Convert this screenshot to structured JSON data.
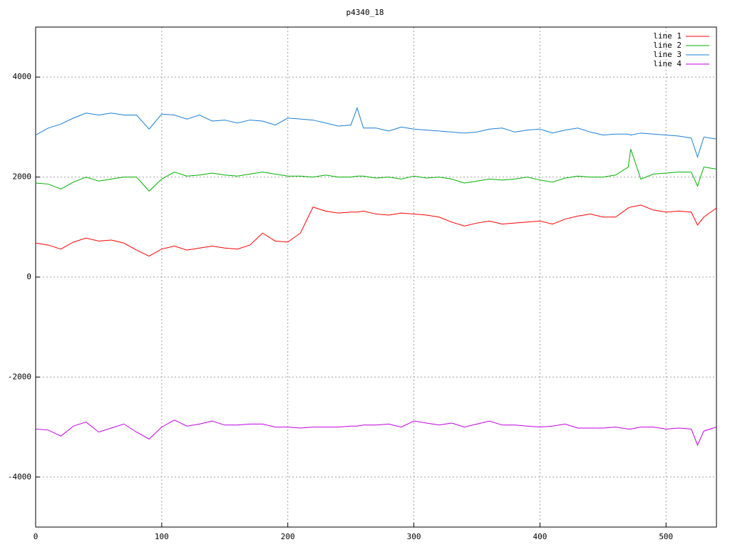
{
  "chart_data": {
    "type": "line",
    "title": "p4340_18",
    "x": [
      0,
      10,
      20,
      30,
      40,
      50,
      60,
      70,
      80,
      90,
      100,
      110,
      120,
      130,
      140,
      150,
      160,
      170,
      180,
      190,
      200,
      210,
      220,
      230,
      240,
      250,
      255,
      260,
      270,
      280,
      290,
      300,
      310,
      320,
      330,
      340,
      350,
      360,
      370,
      380,
      390,
      400,
      410,
      420,
      430,
      440,
      450,
      460,
      470,
      472,
      480,
      490,
      500,
      510,
      520,
      525,
      530,
      540
    ],
    "xlim": [
      0,
      540
    ],
    "xticks": [
      0,
      100,
      200,
      300,
      400,
      500
    ],
    "ylim": [
      -5000,
      5000
    ],
    "yticks": [
      -4000,
      -2000,
      0,
      2000,
      4000
    ],
    "grid": true,
    "legend": "top-right",
    "series": [
      {
        "name": "line 1",
        "color": "#ff0000",
        "values": [
          680,
          640,
          560,
          700,
          780,
          720,
          740,
          680,
          540,
          420,
          560,
          620,
          540,
          580,
          620,
          580,
          560,
          640,
          880,
          720,
          700,
          880,
          1400,
          1320,
          1280,
          1300,
          1300,
          1320,
          1260,
          1240,
          1280,
          1260,
          1240,
          1200,
          1100,
          1020,
          1080,
          1120,
          1060,
          1080,
          1100,
          1120,
          1060,
          1160,
          1220,
          1260,
          1200,
          1200,
          1380,
          1400,
          1440,
          1340,
          1300,
          1320,
          1300,
          1040,
          1200,
          1380
        ]
      },
      {
        "name": "line 2",
        "color": "#00b000",
        "values": [
          1880,
          1860,
          1760,
          1900,
          2000,
          1920,
          1960,
          2000,
          2000,
          1720,
          1960,
          2100,
          2020,
          2040,
          2080,
          2040,
          2020,
          2060,
          2100,
          2060,
          2020,
          2020,
          2000,
          2040,
          2000,
          2000,
          2020,
          2020,
          1980,
          2000,
          1960,
          2020,
          1980,
          2000,
          1960,
          1880,
          1920,
          1960,
          1940,
          1960,
          2000,
          1940,
          1900,
          1980,
          2020,
          2000,
          2000,
          2040,
          2200,
          2560,
          1960,
          2060,
          2080,
          2100,
          2100,
          1820,
          2200,
          2160
        ]
      },
      {
        "name": "line 3",
        "color": "#1a7fd4",
        "values": [
          2840,
          2980,
          3060,
          3180,
          3280,
          3240,
          3280,
          3240,
          3240,
          2960,
          3260,
          3240,
          3160,
          3240,
          3120,
          3140,
          3080,
          3140,
          3120,
          3040,
          3180,
          3160,
          3140,
          3080,
          3020,
          3040,
          3380,
          2980,
          2980,
          2920,
          3000,
          2960,
          2940,
          2920,
          2900,
          2880,
          2900,
          2960,
          2980,
          2900,
          2940,
          2960,
          2880,
          2940,
          2980,
          2900,
          2840,
          2860,
          2860,
          2840,
          2880,
          2860,
          2840,
          2820,
          2780,
          2400,
          2800,
          2760
        ]
      },
      {
        "name": "line 4",
        "color": "#c000e0",
        "values": [
          -3040,
          -3060,
          -3180,
          -2980,
          -2900,
          -3100,
          -3020,
          -2940,
          -3100,
          -3240,
          -3000,
          -2860,
          -2980,
          -2940,
          -2880,
          -2960,
          -2960,
          -2940,
          -2940,
          -3000,
          -3000,
          -3020,
          -3000,
          -3000,
          -3000,
          -2980,
          -2980,
          -2960,
          -2960,
          -2940,
          -3000,
          -2880,
          -2920,
          -2960,
          -2920,
          -3000,
          -2940,
          -2880,
          -2960,
          -2960,
          -2980,
          -3000,
          -2980,
          -2940,
          -3020,
          -3020,
          -3020,
          -3000,
          -3040,
          -3040,
          -3000,
          -3000,
          -3040,
          -3020,
          -3040,
          -3360,
          -3080,
          -3000
        ]
      }
    ]
  }
}
